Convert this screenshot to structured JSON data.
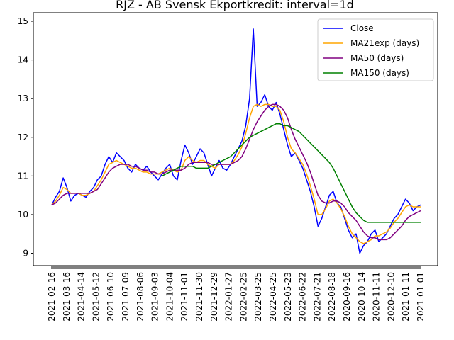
{
  "chart_data": {
    "type": "line",
    "title": "RJZ - AB Svensk Ekportkredit: interval=1d",
    "xlabel": "",
    "ylabel": "",
    "ylim": [
      8.68,
      15.22
    ],
    "yticks": [
      9,
      10,
      11,
      12,
      13,
      14,
      15
    ],
    "xtick_labels": [
      "2021-02-16",
      "2021-03-16",
      "2021-04-14",
      "2021-05-12",
      "2021-06-10",
      "2021-07-09",
      "2021-08-06",
      "2021-09-03",
      "2021-10-04",
      "2021-11-01",
      "2021-11-30",
      "2021-12-29",
      "2022-01-27",
      "2022-02-25",
      "2022-03-25",
      "2022-04-25",
      "2022-05-23",
      "2022-06-22",
      "2022-07-21",
      "2022-08-18",
      "2020-09-16",
      "2020-10-14",
      "2020-11-11",
      "2020-12-10",
      "2021-01-11",
      "2021-01-01"
    ],
    "legend_position": "top-right",
    "grid": false,
    "series": [
      {
        "name": "Close",
        "color": "#0000ff",
        "values": [
          10.25,
          10.45,
          10.6,
          10.95,
          10.7,
          10.35,
          10.5,
          10.55,
          10.5,
          10.45,
          10.6,
          10.7,
          10.9,
          11.0,
          11.3,
          11.5,
          11.35,
          11.6,
          11.5,
          11.4,
          11.2,
          11.1,
          11.3,
          11.2,
          11.15,
          11.25,
          11.1,
          11.0,
          10.9,
          11.05,
          11.2,
          11.3,
          11.0,
          10.9,
          11.4,
          11.8,
          11.6,
          11.3,
          11.5,
          11.7,
          11.6,
          11.3,
          11.0,
          11.2,
          11.4,
          11.2,
          11.15,
          11.3,
          11.5,
          11.7,
          11.9,
          12.3,
          13.0,
          14.8,
          12.8,
          12.9,
          13.1,
          12.8,
          12.7,
          12.9,
          12.6,
          12.2,
          11.8,
          11.5,
          11.6,
          11.4,
          11.2,
          10.9,
          10.6,
          10.2,
          9.7,
          9.9,
          10.2,
          10.5,
          10.6,
          10.3,
          10.2,
          9.9,
          9.6,
          9.4,
          9.5,
          9.0,
          9.2,
          9.3,
          9.5,
          9.6,
          9.3,
          9.4,
          9.5,
          9.7,
          9.9,
          10.0,
          10.2,
          10.4,
          10.3,
          10.1,
          10.2,
          10.25
        ]
      },
      {
        "name": "MA21exp (days)",
        "color": "#ffa500",
        "values": [
          10.25,
          10.35,
          10.5,
          10.7,
          10.65,
          10.55,
          10.55,
          10.55,
          10.5,
          10.5,
          10.55,
          10.6,
          10.75,
          10.9,
          11.1,
          11.3,
          11.35,
          11.4,
          11.35,
          11.3,
          11.25,
          11.2,
          11.2,
          11.15,
          11.1,
          11.1,
          11.05,
          11.05,
          11.05,
          11.1,
          11.15,
          11.2,
          11.15,
          11.1,
          11.15,
          11.4,
          11.5,
          11.4,
          11.35,
          11.4,
          11.4,
          11.3,
          11.25,
          11.2,
          11.3,
          11.3,
          11.3,
          11.3,
          11.4,
          11.55,
          11.75,
          12.1,
          12.5,
          12.8,
          12.85,
          12.8,
          12.85,
          12.85,
          12.8,
          12.8,
          12.7,
          12.4,
          12.0,
          11.7,
          11.6,
          11.45,
          11.3,
          11.05,
          10.75,
          10.4,
          10.0,
          10.0,
          10.15,
          10.35,
          10.4,
          10.3,
          10.15,
          9.95,
          9.7,
          9.5,
          9.4,
          9.3,
          9.25,
          9.3,
          9.35,
          9.45,
          9.45,
          9.5,
          9.55,
          9.65,
          9.8,
          9.9,
          10.05,
          10.2,
          10.25,
          10.2,
          10.2,
          10.2
        ]
      },
      {
        "name": "MA50 (days)",
        "color": "#800080",
        "values": [
          10.25,
          10.3,
          10.4,
          10.5,
          10.55,
          10.55,
          10.55,
          10.55,
          10.55,
          10.55,
          10.55,
          10.6,
          10.65,
          10.8,
          10.95,
          11.1,
          11.2,
          11.25,
          11.3,
          11.3,
          11.3,
          11.25,
          11.25,
          11.2,
          11.15,
          11.15,
          11.1,
          11.1,
          11.05,
          11.05,
          11.1,
          11.15,
          11.15,
          11.15,
          11.15,
          11.2,
          11.3,
          11.35,
          11.35,
          11.35,
          11.35,
          11.35,
          11.3,
          11.3,
          11.3,
          11.3,
          11.3,
          11.3,
          11.35,
          11.4,
          11.5,
          11.7,
          11.95,
          12.2,
          12.4,
          12.55,
          12.7,
          12.8,
          12.85,
          12.85,
          12.8,
          12.7,
          12.5,
          12.2,
          11.95,
          11.75,
          11.55,
          11.35,
          11.1,
          10.8,
          10.5,
          10.35,
          10.3,
          10.3,
          10.35,
          10.35,
          10.3,
          10.2,
          10.05,
          9.95,
          9.85,
          9.7,
          9.55,
          9.45,
          9.4,
          9.4,
          9.35,
          9.35,
          9.35,
          9.4,
          9.5,
          9.6,
          9.7,
          9.85,
          9.95,
          10.0,
          10.05,
          10.1
        ]
      },
      {
        "name": "MA150 (days)",
        "color": "#008000",
        "values": [
          null,
          null,
          null,
          null,
          null,
          null,
          null,
          null,
          null,
          null,
          null,
          null,
          null,
          null,
          null,
          null,
          null,
          null,
          null,
          null,
          null,
          null,
          null,
          null,
          null,
          null,
          null,
          null,
          null,
          11.0,
          11.05,
          11.1,
          11.15,
          11.2,
          11.25,
          11.25,
          11.25,
          11.25,
          11.2,
          11.2,
          11.2,
          11.2,
          11.25,
          11.3,
          11.35,
          11.4,
          11.45,
          11.5,
          11.6,
          11.7,
          11.8,
          11.9,
          12.0,
          12.05,
          12.1,
          12.15,
          12.2,
          12.25,
          12.3,
          12.35,
          12.35,
          12.3,
          12.3,
          12.25,
          12.2,
          12.15,
          12.05,
          11.95,
          11.85,
          11.75,
          11.65,
          11.55,
          11.45,
          11.35,
          11.2,
          11.0,
          10.8,
          10.6,
          10.4,
          10.2,
          10.05,
          9.95,
          9.85,
          9.8,
          9.8,
          9.8,
          9.8,
          9.8,
          9.8,
          9.8,
          9.8,
          9.8,
          9.8,
          9.8,
          9.8,
          9.8,
          9.8,
          9.8
        ]
      }
    ]
  }
}
